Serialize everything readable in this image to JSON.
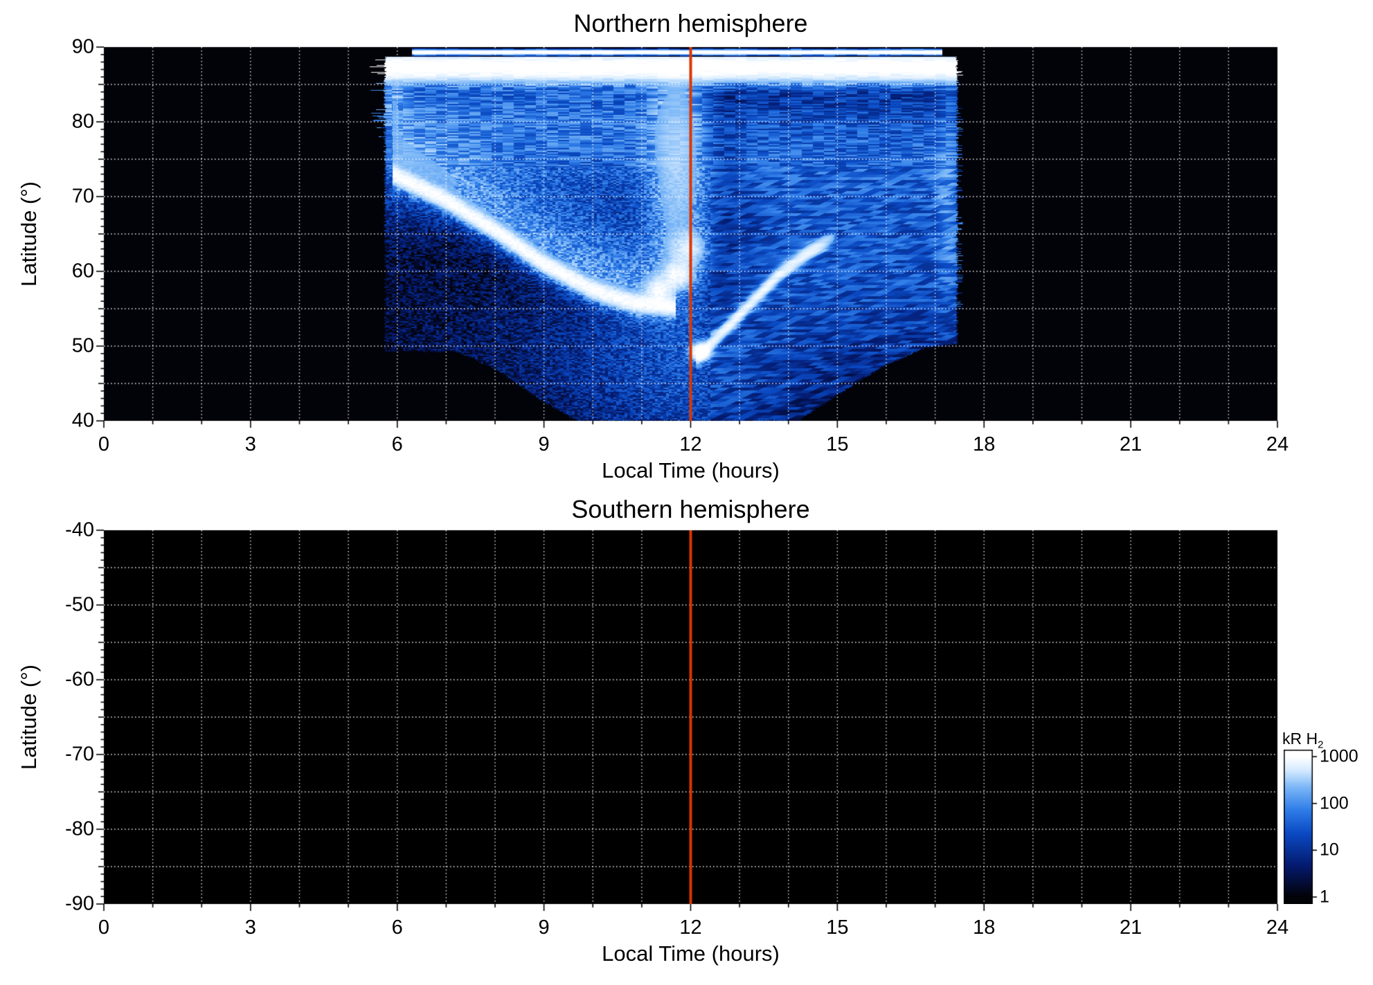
{
  "figure": {
    "background": "#ffffff"
  },
  "chart_data": {
    "type": "heatmap",
    "panels": [
      {
        "id": "north",
        "title": "Northern hemisphere",
        "xlabel": "Local Time (hours)",
        "ylabel": "Latitude (°)",
        "xlim": [
          0,
          24
        ],
        "ylim": [
          40,
          90
        ],
        "xticks": [
          0,
          3,
          6,
          9,
          12,
          15,
          18,
          21,
          24
        ],
        "yticks": [
          90,
          80,
          70,
          60,
          50,
          40
        ],
        "x_minor_step": 1,
        "y_minor_step": 1,
        "grid": {
          "x_step": 1,
          "y_step": 5,
          "color": "rgba(255,255,255,0.92)",
          "style": "dotted"
        },
        "noon_line": {
          "x": 12,
          "color": "#dc3600",
          "width": 4
        },
        "background": "#000000",
        "has_data": true
      },
      {
        "id": "south",
        "title": "Southern hemisphere",
        "xlabel": "Local Time (hours)",
        "ylabel": "Latitude (°)",
        "xlim": [
          0,
          24
        ],
        "ylim": [
          -90,
          -40
        ],
        "xticks": [
          0,
          3,
          6,
          9,
          12,
          15,
          18,
          21,
          24
        ],
        "yticks": [
          -40,
          -50,
          -60,
          -70,
          -80,
          -90
        ],
        "x_minor_step": 1,
        "y_minor_step": 1,
        "grid": {
          "x_step": 1,
          "y_step": 5,
          "color": "rgba(255,255,255,0.92)",
          "style": "dotted"
        },
        "noon_line": {
          "x": 12,
          "color": "#dc3600",
          "width": 4
        },
        "background": "#000000",
        "has_data": false
      }
    ],
    "colorbar": {
      "label": "kR H",
      "label_sub": "2",
      "ticks": [
        "1000",
        "100",
        "10",
        "1"
      ],
      "tick_values": [
        1000,
        100,
        10,
        1
      ],
      "log_range": [
        -0.15,
        3.15
      ],
      "border_color": "#000000"
    },
    "colormap": [
      [
        0.0,
        "#020209"
      ],
      [
        0.22,
        "#041a6e"
      ],
      [
        0.45,
        "#0a49c2"
      ],
      [
        0.62,
        "#2f7de8"
      ],
      [
        0.78,
        "#7ab6f7"
      ],
      [
        0.9,
        "#d2e9ff"
      ],
      [
        1.0,
        "#ffffff"
      ]
    ],
    "aurora": {
      "units": "kR H2",
      "t_range": [
        5.75,
        17.45
      ],
      "lat_top": 88.7,
      "bottom_boundary": [
        [
          5.75,
          49.3
        ],
        [
          7.2,
          49.3
        ],
        [
          8.0,
          47.0
        ],
        [
          9.0,
          42.5
        ],
        [
          9.7,
          40.0
        ],
        [
          14.2,
          40.0
        ],
        [
          15.0,
          43.5
        ],
        [
          16.0,
          47.5
        ],
        [
          16.8,
          49.8
        ],
        [
          17.45,
          50.3
        ]
      ],
      "floor_kr": 3,
      "polar_band": {
        "lat": 87.3,
        "sigma": 1.5,
        "amp": 1300
      },
      "top_streak": {
        "lat": 89.3,
        "sigma": 0.22,
        "amp": 1500,
        "t_range": [
          6.3,
          17.15
        ]
      },
      "main_arc": {
        "points": [
          [
            5.9,
            73
          ],
          [
            7,
            69.5
          ],
          [
            8,
            65.5
          ],
          [
            9,
            61
          ],
          [
            10,
            57.5
          ],
          [
            10.8,
            55.8
          ],
          [
            11.7,
            55.2
          ]
        ],
        "amp": 950,
        "sigma": 1.05,
        "glow_amp": 130,
        "glow_sigma": 3
      },
      "right_streak": {
        "points": [
          [
            12.1,
            48.3
          ],
          [
            12.6,
            51.5
          ],
          [
            13.2,
            55.5
          ],
          [
            13.8,
            59.5
          ],
          [
            14.4,
            62.5
          ],
          [
            15.0,
            64.8
          ]
        ],
        "amp": 750,
        "sigma": 0.85
      },
      "blobs": [
        [
          11.35,
          57.5,
          700,
          0.22,
          1.4
        ],
        [
          11.75,
          59.5,
          800,
          0.25,
          1.6
        ],
        [
          11.95,
          63,
          500,
          0.3,
          2.0
        ],
        [
          12.2,
          49.2,
          1600,
          0.16,
          0.9
        ]
      ],
      "noon_column": {
        "t": 11.75,
        "sigma_t": 0.5,
        "lat": 74,
        "sigma_lat": 13,
        "amp": 320
      },
      "dawn_glow": {
        "amp": 85,
        "lat": 79,
        "sigma": 7.5,
        "t_end": 12.3
      },
      "dawn_arc_fill": {
        "amp": 55,
        "sigma": 5,
        "offset": 6
      },
      "dusk_glow": {
        "amp": 38,
        "lat": 63,
        "sigma": 11,
        "t_start": 12.4
      },
      "dusk_upper": {
        "amp": 45,
        "lat": 76,
        "sigma": 6.5
      },
      "bottom_center": {
        "amp": 22,
        "t": 11.9,
        "sigma_t": 1.7,
        "lat": 47,
        "sigma_lat": 10
      },
      "bottom_wide": {
        "amp": 10,
        "t": 12.0,
        "sigma_t": 3.5,
        "lat": 50,
        "sigma_lat": 9
      },
      "left_edge_streaks": {
        "amp": 100,
        "t": 5.95,
        "sigma_t": 0.28,
        "lat": 83,
        "sigma_lat": 4
      },
      "right_edge_col": {
        "amp": 90,
        "t": 17.25,
        "sigma_t": 0.22,
        "lat": 70,
        "sigma_lat": 12
      }
    }
  }
}
